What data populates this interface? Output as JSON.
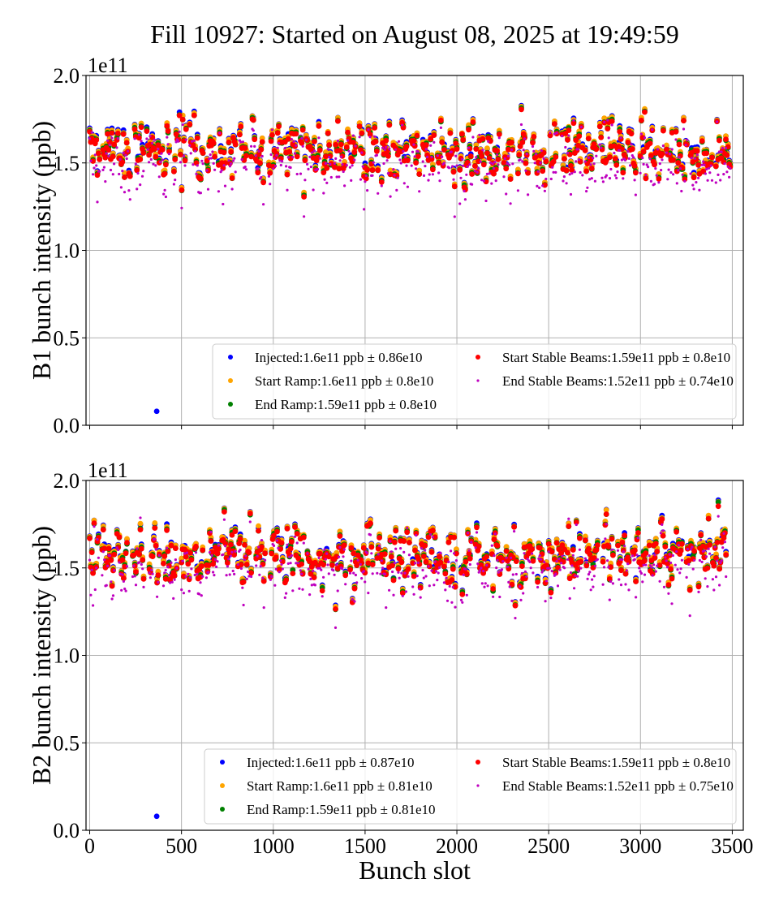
{
  "figure": {
    "title": "Fill 10927: Started on August 08, 2025 at 19:49:59"
  },
  "chart_data": [
    {
      "type": "scatter",
      "panel": "B1",
      "title": "",
      "xlabel": "",
      "ylabel": "B1 bunch intensity (ppb)",
      "y_offset_label": "1e11",
      "xlim": [
        -20,
        3560
      ],
      "ylim": [
        0.0,
        2.0
      ],
      "x_ticks": [
        0,
        500,
        1000,
        1500,
        2000,
        2500,
        3000,
        3500
      ],
      "x_tick_labels": [
        "",
        "",
        "",
        "",
        "",
        "",
        "",
        ""
      ],
      "y_ticks": [
        0.0,
        0.5,
        1.0,
        1.5,
        2.0
      ],
      "y_tick_labels": [
        "0.0",
        "0.5",
        "1.0",
        "1.5",
        "2.0"
      ],
      "grid": true,
      "legend_position": "lower-right",
      "legend_columns": 2,
      "x_range_of_bunches": [
        0,
        3420
      ],
      "outliers": [
        {
          "series": "Injected",
          "x": 365,
          "y": 0.08
        }
      ],
      "series": [
        {
          "name": "Injected",
          "label": "Injected:1.6e11 ppb ± 0.86e10",
          "color": "#0000ff",
          "mean": 1.6,
          "std": 0.086,
          "marker_size": "large"
        },
        {
          "name": "Start Ramp",
          "label": "Start Ramp:1.6e11 ppb ± 0.8e10",
          "color": "#ffa500",
          "mean": 1.6,
          "std": 0.08,
          "marker_size": "large"
        },
        {
          "name": "End Ramp",
          "label": "End Ramp:1.59e11 ppb ± 0.8e10",
          "color": "#008000",
          "mean": 1.59,
          "std": 0.08,
          "marker_size": "large"
        },
        {
          "name": "Start Stable Beams",
          "label": "Start Stable Beams:1.59e11 ppb ± 0.8e10",
          "color": "#ff0000",
          "mean": 1.59,
          "std": 0.08,
          "marker_size": "large"
        },
        {
          "name": "End Stable Beams",
          "label": "End Stable Beams:1.52e11 ppb ± 0.74e10",
          "color": "#bf00bf",
          "mean": 1.52,
          "std": 0.074,
          "marker_size": "small"
        }
      ]
    },
    {
      "type": "scatter",
      "panel": "B2",
      "title": "",
      "xlabel": "Bunch slot",
      "ylabel": "B2 bunch intensity (ppb)",
      "y_offset_label": "1e11",
      "xlim": [
        -20,
        3560
      ],
      "ylim": [
        0.0,
        2.0
      ],
      "x_ticks": [
        0,
        500,
        1000,
        1500,
        2000,
        2500,
        3000,
        3500
      ],
      "x_tick_labels": [
        "0",
        "500",
        "1000",
        "1500",
        "2000",
        "2500",
        "3000",
        "3500"
      ],
      "y_ticks": [
        0.0,
        0.5,
        1.0,
        1.5,
        2.0
      ],
      "y_tick_labels": [
        "0.0",
        "0.5",
        "1.0",
        "1.5",
        "2.0"
      ],
      "grid": true,
      "legend_position": "lower-right",
      "legend_columns": 2,
      "x_range_of_bunches": [
        0,
        3420
      ],
      "outliers": [
        {
          "series": "Injected",
          "x": 365,
          "y": 0.08
        }
      ],
      "series": [
        {
          "name": "Injected",
          "label": "Injected:1.6e11 ppb ± 0.87e10",
          "color": "#0000ff",
          "mean": 1.6,
          "std": 0.087,
          "marker_size": "large"
        },
        {
          "name": "Start Ramp",
          "label": "Start Ramp:1.6e11 ppb ± 0.81e10",
          "color": "#ffa500",
          "mean": 1.6,
          "std": 0.081,
          "marker_size": "large"
        },
        {
          "name": "End Ramp",
          "label": "End Ramp:1.59e11 ppb ± 0.81e10",
          "color": "#008000",
          "mean": 1.59,
          "std": 0.081,
          "marker_size": "large"
        },
        {
          "name": "Start Stable Beams",
          "label": "Start Stable Beams:1.59e11 ppb ± 0.8e10",
          "color": "#ff0000",
          "mean": 1.59,
          "std": 0.08,
          "marker_size": "large"
        },
        {
          "name": "End Stable Beams",
          "label": "End Stable Beams:1.52e11 ppb ± 0.75e10",
          "color": "#bf00bf",
          "mean": 1.52,
          "std": 0.075,
          "marker_size": "small"
        }
      ]
    }
  ]
}
